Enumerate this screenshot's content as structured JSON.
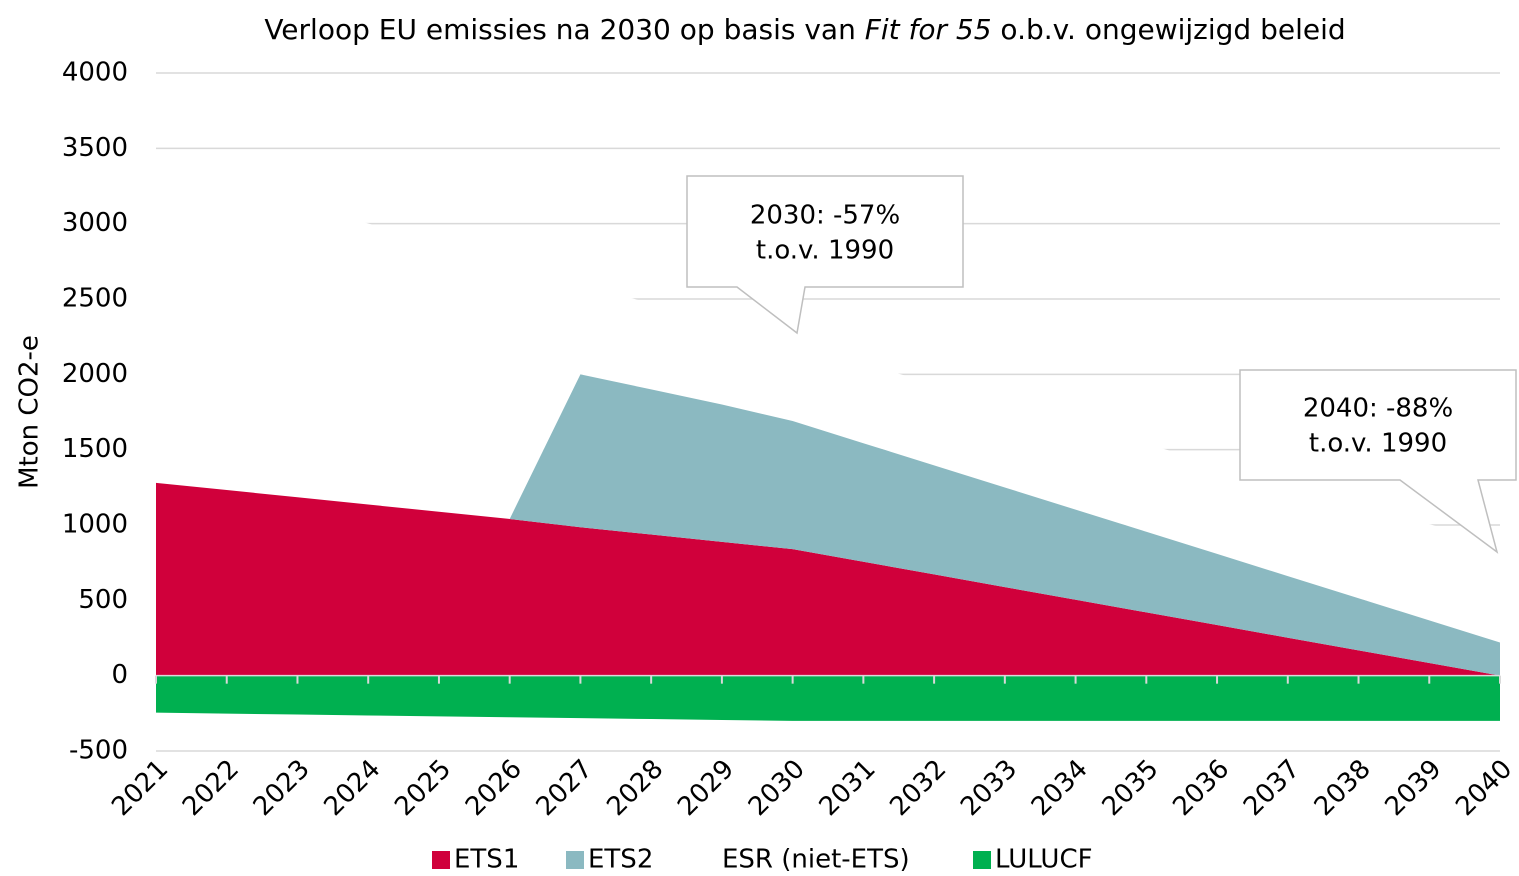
{
  "chart_data": {
    "type": "stacked-area",
    "title": [
      "Verloop EU emissies na 2030 op basis van ",
      "Fit for 55",
      " o.b.v. ongewijzigd beleid"
    ],
    "y_label": "Mton CO2-e",
    "categories": [
      "2021",
      "2022",
      "2023",
      "2024",
      "2025",
      "2026",
      "2027",
      "2028",
      "2029",
      "2030",
      "2031",
      "2032",
      "2033",
      "2034",
      "2035",
      "2036",
      "2037",
      "2038",
      "2039",
      "2040"
    ],
    "series": [
      {
        "name": "ETS1",
        "color": "#d0003b",
        "values": [
          1280,
          1232,
          1184,
          1136,
          1088,
          1040,
          985,
          937,
          888,
          840,
          756,
          672,
          588,
          504,
          420,
          336,
          252,
          168,
          84,
          0
        ]
      },
      {
        "name": "ETS2",
        "color": "#8bb9c1",
        "values": [
          null,
          null,
          null,
          null,
          null,
          0,
          1015,
          963,
          912,
          850,
          787,
          724,
          661,
          598,
          535,
          472,
          409,
          346,
          283,
          220
        ]
      },
      {
        "name": "ESR (niet-ETS)",
        "color": "#ffffff",
        "values": [
          2120,
          2035,
          1950,
          1865,
          1780,
          1695,
          602,
          569,
          536,
          513,
          527,
          541,
          555,
          569,
          583,
          597,
          611,
          625,
          639,
          653
        ]
      },
      {
        "name": "LULUCF",
        "color": "#00b050",
        "values": [
          -245,
          -252,
          -258,
          -264,
          -270,
          -276,
          -282,
          -288,
          -294,
          -300,
          -300,
          -300,
          -300,
          -300,
          -300,
          -300,
          -300,
          -300,
          -300,
          -300
        ]
      }
    ],
    "ylim": [
      -500,
      4000
    ],
    "yticks": [
      -500,
      0,
      500,
      1000,
      1500,
      2000,
      2500,
      3000,
      3500,
      4000
    ],
    "grid": true,
    "legend": "bottom",
    "annotations": [
      {
        "lines": [
          "2030: -57%",
          "t.o.v. 1990"
        ]
      },
      {
        "lines": [
          "2040: -88%",
          "t.o.v. 1990"
        ]
      }
    ]
  }
}
